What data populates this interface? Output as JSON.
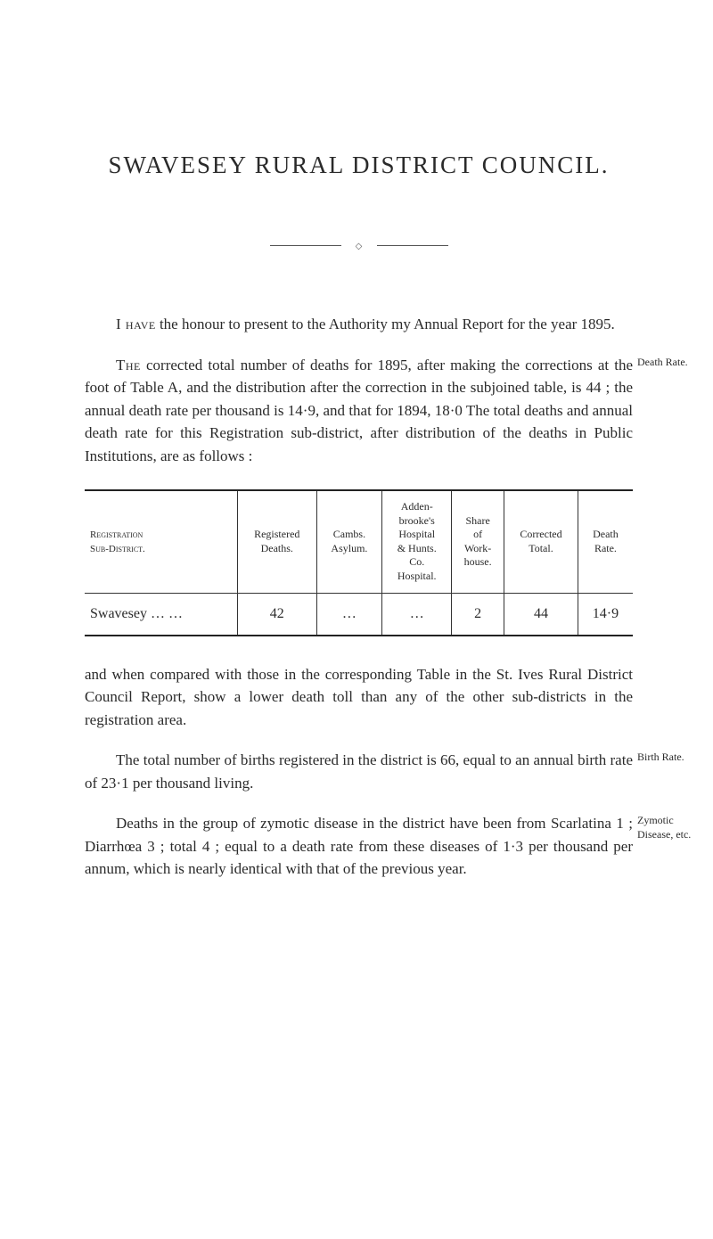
{
  "title": "SWAVESEY RURAL DISTRICT COUNCIL.",
  "para1_lead": "I have",
  "para1_rest": " the honour to present to the Authority my Annual Report for the year 1895.",
  "margin_death_rate": "Death Rate.",
  "para2_lead": "The",
  "para2_rest": " corrected total number of deaths for 1895, after making the corrections at the foot of Table A, and the distribution after the correction in the subjoined table, is 44 ; the annual death rate per thousand is 14·9, and that for 1894, 18·0 The total deaths and annual death rate for this Registration sub-district, after distribution of the deaths in Public Institutions, are as follows :",
  "table": {
    "columns": [
      {
        "l1": "Registration",
        "l2": "Sub-District."
      },
      {
        "l1": "Registered",
        "l2": "Deaths."
      },
      {
        "l1": "Cambs.",
        "l2": "Asylum."
      },
      {
        "l1": "Adden-\nbrooke's\nHospital\n& Hunts.\nCo.\nHospital."
      },
      {
        "l1": "Share\nof\nWork-\nhouse."
      },
      {
        "l1": "Corrected",
        "l2": "Total."
      },
      {
        "l1": "Death",
        "l2": "Rate."
      }
    ],
    "row_label": "Swavesey … …",
    "row": [
      "42",
      "…",
      "…",
      "2",
      "44",
      "14·9"
    ]
  },
  "para3": "and when compared with those in the corresponding Table in the St. Ives Rural District Council Report, show a lower death toll than any of the other sub-districts in the registration area.",
  "margin_birth_rate": "Birth Rate.",
  "para4": "The total number of births registered in the district is 66, equal to an annual birth rate of 23·1 per thousand living.",
  "margin_zymotic": "Zymotic Disease, etc.",
  "para5": "Deaths in the group of zymotic disease in the district have been from Scarlatina 1 ; Diarrhœa 3 ; total 4 ; equal to a death rate from these diseases of 1·3 per thousand per annum, which is nearly identical with that of the previous year."
}
